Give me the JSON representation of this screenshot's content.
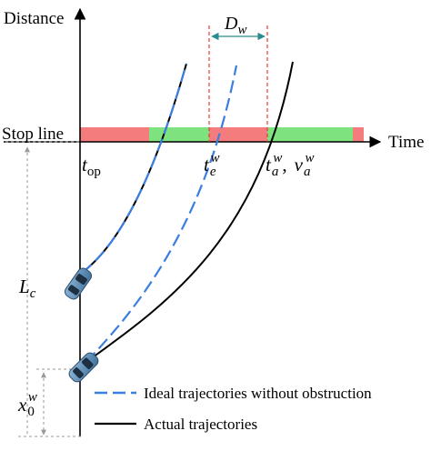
{
  "axes": {
    "y_label": "Distance",
    "x_label": "Time",
    "stop_line_label": "Stop line"
  },
  "annotations": {
    "t_op": {
      "base": "t",
      "sub": "op"
    },
    "t_e_w": {
      "base": "t",
      "sub": "e",
      "sup": "w"
    },
    "t_a_w": {
      "base": "t",
      "sub": "a",
      "sup": "w"
    },
    "comma": ",",
    "v_a_w": {
      "base": "v",
      "sub": "a",
      "sup": "w"
    },
    "D_w": {
      "base": "D",
      "sub": "w"
    },
    "L_c": {
      "base": "L",
      "sub": "c"
    },
    "x_0_w": {
      "base": "x",
      "sub": "0",
      "sup": "w"
    }
  },
  "legend": {
    "ideal": "Ideal trajectories without obstruction",
    "actual": "Actual trajectories"
  },
  "colors": {
    "red_phase": "#f47c7c",
    "green_phase": "#7ee37e",
    "ideal_line": "#3a7ee0",
    "actual_line": "#000000",
    "guide_red": "#e53935",
    "guide_gray": "#999999"
  }
}
